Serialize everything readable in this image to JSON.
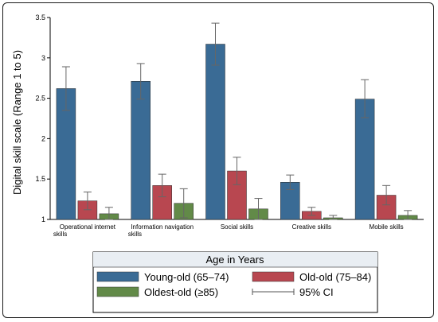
{
  "chart_data": {
    "type": "bar",
    "ylabel": "Digital skill scale (Range 1 to 5)",
    "xlabel": "",
    "ylim": [
      1,
      3.5
    ],
    "yticks": [
      1,
      1.5,
      2,
      2.5,
      3,
      3.5
    ],
    "ytick_labels": [
      "1",
      "1.5",
      "2",
      "2.5",
      "3",
      "3.5"
    ],
    "grid": false,
    "categories": [
      [
        "Operational internet",
        "skills"
      ],
      [
        "Information navigation",
        "skills"
      ],
      [
        "Social skills"
      ],
      [
        "Creative skills"
      ],
      [
        "Mobile skills"
      ]
    ],
    "series": [
      {
        "name": "Young-old (65–74)",
        "color": "#3a6b95",
        "values": [
          2.62,
          2.71,
          3.17,
          1.46,
          2.49
        ],
        "ci_low": [
          2.35,
          2.49,
          2.91,
          1.37,
          2.26
        ],
        "ci_high": [
          2.89,
          2.93,
          3.43,
          1.55,
          2.73
        ]
      },
      {
        "name": "Old-old (75–84)",
        "color": "#b84750",
        "values": [
          1.23,
          1.42,
          1.6,
          1.1,
          1.3
        ],
        "ci_low": [
          1.12,
          1.28,
          1.43,
          1.05,
          1.18
        ],
        "ci_high": [
          1.34,
          1.56,
          1.77,
          1.15,
          1.42
        ]
      },
      {
        "name": "Oldest-old (≥85)",
        "color": "#628a48",
        "values": [
          1.07,
          1.2,
          1.13,
          1.02,
          1.05
        ],
        "ci_low": [
          1.0,
          1.02,
          1.0,
          1.0,
          1.0
        ],
        "ci_high": [
          1.15,
          1.38,
          1.26,
          1.05,
          1.11
        ]
      }
    ],
    "legend": {
      "title": "Age in Years",
      "position": "bottom",
      "ci_label": "95% CI"
    }
  }
}
